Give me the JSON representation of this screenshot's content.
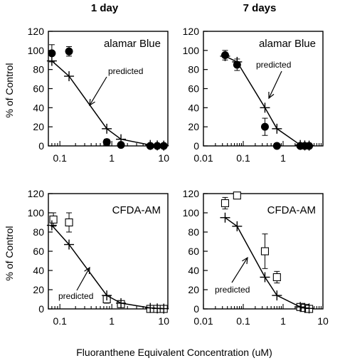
{
  "figure": {
    "column_titles": [
      "1 day",
      "7 days"
    ],
    "xlabel": "Fluoranthene Equivalent Concentration (uM)",
    "ylabel": "% of Control"
  },
  "chart_data": [
    {
      "type": "scatter",
      "column_title": "1 day",
      "panel_label": "alamar Blue",
      "annotation": "predicted",
      "x_scale": "log",
      "xlim": [
        0.06,
        12
      ],
      "ylim": [
        0,
        120
      ],
      "yticks": [
        0,
        20,
        40,
        60,
        80,
        100,
        120
      ],
      "xticks": [
        0.1,
        1,
        10
      ],
      "xtick_labels": [
        "0.1",
        "1",
        "10"
      ],
      "ylabel": "% of Control",
      "series": [
        {
          "marker": "filled-circle",
          "x": [
            0.07,
            0.15,
            0.8,
            1.5,
            5.5,
            7.5,
            10
          ],
          "y": [
            97,
            99,
            4,
            1,
            0,
            0,
            0
          ],
          "err": [
            9,
            5,
            3,
            2,
            1,
            1,
            1
          ]
        },
        {
          "name": "predicted",
          "marker": "plus",
          "line": true,
          "x": [
            0.07,
            0.15,
            0.8,
            1.5,
            5.5,
            7.5,
            10
          ],
          "y": [
            89,
            73,
            18,
            7,
            1,
            0.5,
            0.3
          ]
        }
      ]
    },
    {
      "type": "scatter",
      "column_title": "7 days",
      "panel_label": "alamar Blue",
      "annotation": "predicted",
      "x_scale": "log",
      "xlim": [
        0.01,
        10
      ],
      "ylim": [
        0,
        120
      ],
      "yticks": [
        0,
        20,
        40,
        60,
        80,
        100,
        120
      ],
      "xticks": [
        0.01,
        0.1,
        1
      ],
      "xtick_labels": [
        "0.01",
        "0.1",
        "1"
      ],
      "series": [
        {
          "marker": "filled-circle",
          "x": [
            0.035,
            0.07,
            0.35,
            0.7,
            2.7,
            3.5,
            4.5
          ],
          "y": [
            95,
            85,
            20,
            0,
            0,
            0,
            0
          ],
          "err": [
            5,
            6,
            9,
            1,
            1,
            1,
            1
          ]
        },
        {
          "name": "predicted",
          "marker": "plus",
          "line": true,
          "x": [
            0.035,
            0.07,
            0.35,
            0.7,
            2.7,
            3.5,
            4.5
          ],
          "y": [
            94,
            88,
            40,
            18,
            1,
            0.5,
            0.3
          ]
        }
      ]
    },
    {
      "type": "scatter",
      "column_title": "1 day",
      "panel_label": "CFDA-AM",
      "annotation": "predicted",
      "x_scale": "log",
      "xlim": [
        0.06,
        12
      ],
      "ylim": [
        0,
        120
      ],
      "yticks": [
        0,
        20,
        40,
        60,
        80,
        100,
        120
      ],
      "xticks": [
        0.1,
        1,
        10
      ],
      "xtick_labels": [
        "0.1",
        "1",
        "10"
      ],
      "ylabel": "% of Control",
      "series": [
        {
          "marker": "open-square",
          "x": [
            0.075,
            0.15,
            0.8,
            1.5,
            5.5,
            7.5,
            10
          ],
          "y": [
            93,
            90,
            10,
            5,
            0,
            0,
            0
          ],
          "err": [
            7,
            10,
            4,
            2,
            1,
            1,
            1
          ]
        },
        {
          "name": "predicted",
          "marker": "plus",
          "line": true,
          "x": [
            0.07,
            0.15,
            0.8,
            1.5,
            5.5,
            7.5,
            10
          ],
          "y": [
            87,
            67,
            14,
            6,
            1,
            0.5,
            0.3
          ]
        }
      ]
    },
    {
      "type": "scatter",
      "column_title": "7 days",
      "panel_label": "CFDA-AM",
      "annotation": "predicted",
      "x_scale": "log",
      "xlim": [
        0.01,
        10
      ],
      "ylim": [
        0,
        120
      ],
      "yticks": [
        0,
        20,
        40,
        60,
        80,
        100,
        120
      ],
      "xticks": [
        0.01,
        0.1,
        1,
        10
      ],
      "xtick_labels": [
        "0.01",
        "0.1",
        "1",
        "10"
      ],
      "series": [
        {
          "marker": "open-square",
          "x": [
            0.035,
            0.07,
            0.35,
            0.7,
            2.7,
            3.5,
            4.5
          ],
          "y": [
            110,
            118,
            60,
            33,
            2,
            1,
            0
          ],
          "err": [
            6,
            3,
            18,
            6,
            2,
            1,
            1
          ]
        },
        {
          "name": "predicted",
          "marker": "plus",
          "line": true,
          "x": [
            0.035,
            0.07,
            0.35,
            0.7,
            2.7,
            3.5,
            4.5
          ],
          "y": [
            95,
            86,
            33,
            14,
            2,
            1,
            0.5
          ]
        }
      ]
    }
  ]
}
